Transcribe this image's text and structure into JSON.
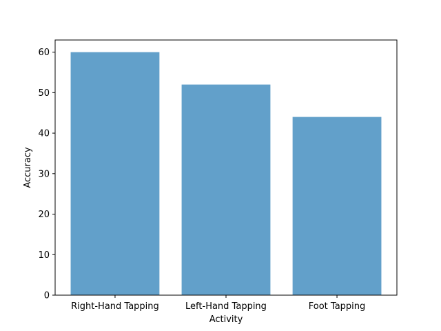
{
  "chart_data": {
    "type": "bar",
    "title": "",
    "xlabel": "Activity",
    "ylabel": "Accuracy",
    "categories": [
      "Right-Hand Tapping",
      "Left-Hand Tapping",
      "Foot Tapping"
    ],
    "values": [
      60,
      52,
      44
    ],
    "ylim": [
      0,
      63
    ],
    "yticks": [
      0,
      10,
      20,
      30,
      40,
      50,
      60
    ],
    "bar_color": "#1f77b4",
    "bar_alpha": 0.7,
    "grid": false,
    "legend": "none"
  }
}
